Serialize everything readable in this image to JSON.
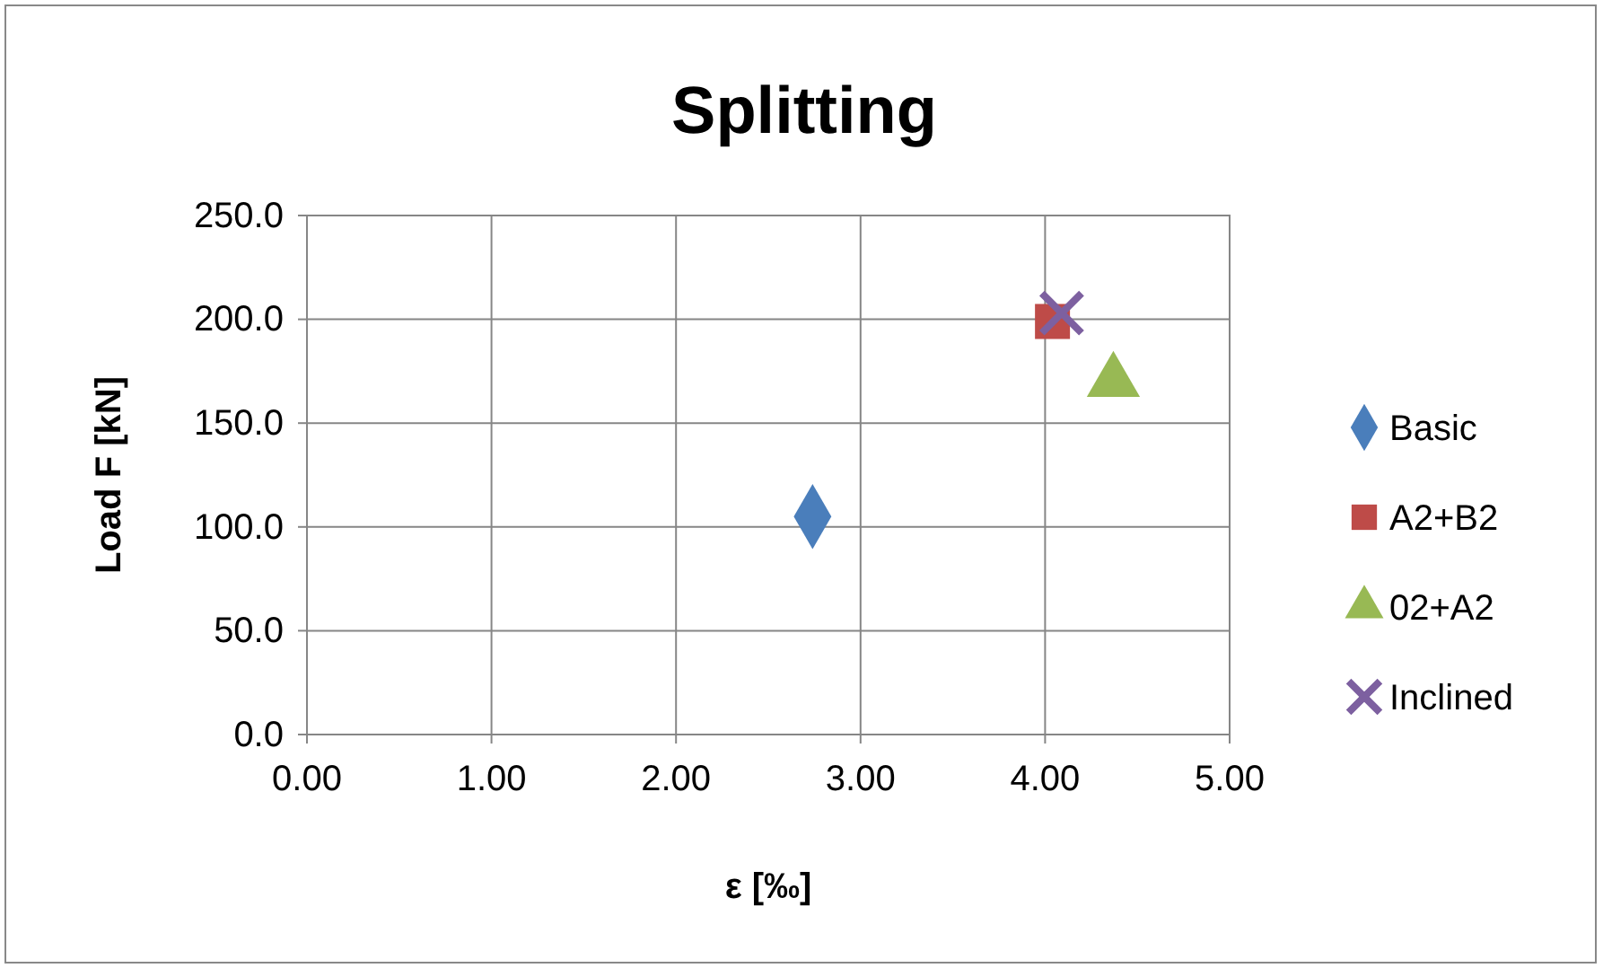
{
  "chart_data": {
    "type": "scatter",
    "title": "Splitting",
    "xlabel": "ε [‰]",
    "ylabel": "Load F [kN]",
    "xlim": [
      0,
      5
    ],
    "xticks": [
      {
        "value": 0,
        "label": "0.00"
      },
      {
        "value": 1,
        "label": "1.00"
      },
      {
        "value": 2,
        "label": "2.00"
      },
      {
        "value": 3,
        "label": "3.00"
      },
      {
        "value": 4,
        "label": "4.00"
      },
      {
        "value": 5,
        "label": "5.00"
      }
    ],
    "ylim": [
      0,
      250
    ],
    "yticks": [
      {
        "value": 0,
        "label": "0.0"
      },
      {
        "value": 50,
        "label": "50.0"
      },
      {
        "value": 100,
        "label": "100.0"
      },
      {
        "value": 150,
        "label": "150.0"
      },
      {
        "value": 200,
        "label": "200.0"
      },
      {
        "value": 250,
        "label": "250.0"
      }
    ],
    "grid": true,
    "legend": "right",
    "series": [
      {
        "name": "Basic",
        "color": "#4a7ebb",
        "marker": "diamond",
        "x": [
          2.74
        ],
        "values": [
          105
        ]
      },
      {
        "name": "A2+B2",
        "color": "#be4b48",
        "marker": "square",
        "x": [
          4.04
        ],
        "values": [
          199
        ]
      },
      {
        "name": "02+A2",
        "color": "#98b954",
        "marker": "triangle",
        "x": [
          4.37
        ],
        "values": [
          170
        ]
      },
      {
        "name": "Inclined",
        "color": "#7d60a0",
        "marker": "cross",
        "x": [
          4.09
        ],
        "values": [
          203
        ]
      }
    ]
  }
}
